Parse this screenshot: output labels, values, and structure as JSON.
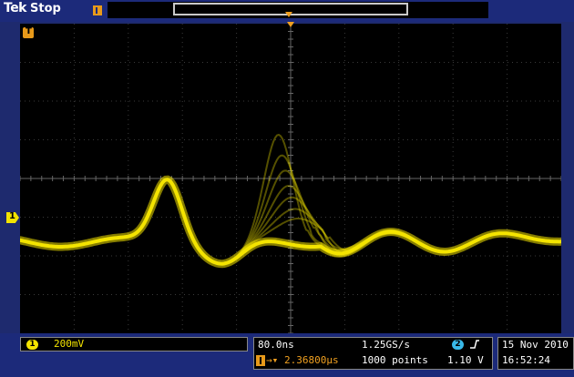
{
  "header": {
    "brand": "Tek",
    "run_state": "Stop"
  },
  "channel1": {
    "marker_label": "1",
    "scale": "200mV",
    "trace_color": "#f4e400"
  },
  "trigger": {
    "marker_label": "T"
  },
  "timebase": {
    "time_per_div": "80.0ns",
    "sample_rate": "1.25GS/s",
    "trigger_position": "2.36800µs",
    "record_length": "1000 points",
    "trigger_source": "2",
    "trigger_level": "1.10 V",
    "trigger_slope_icon": "rising-edge-icon"
  },
  "datetime": {
    "date": "15 Nov 2010",
    "time": "16:52:24"
  },
  "colors": {
    "frame": "#1c2a7a",
    "accent_orange": "#f0a020",
    "ch2_cyan": "#39b9e8"
  }
}
